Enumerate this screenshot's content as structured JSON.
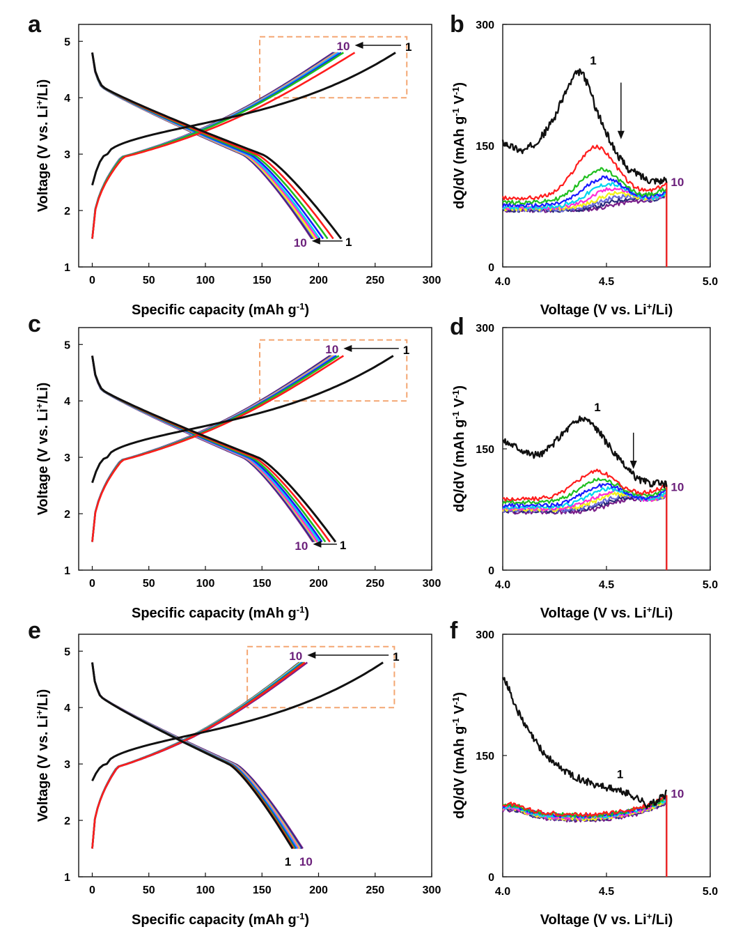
{
  "colors": {
    "cycles": [
      "#111111",
      "#ff1c1c",
      "#1fbf1f",
      "#1a1aff",
      "#00d6ee",
      "#ff2bd6",
      "#f2f21a",
      "#6b6bd9",
      "#2a2a7a",
      "#7a1f8a"
    ],
    "annotation_purple": "#6a1f7a",
    "dashed_box": "#f4a672",
    "axis": "#111111"
  },
  "chart_data": [
    {
      "panel": "a",
      "type": "line",
      "label": "a",
      "xlabel": "Specific capacity (mAh g-1)",
      "ylabel": "Voltage (V vs. Li+/Li)",
      "xlim": [
        -12,
        300
      ],
      "ylim": [
        1,
        5.3
      ],
      "xticks": [
        "0",
        "50",
        "100",
        "150",
        "200",
        "250",
        "300"
      ],
      "yticks": [
        "1",
        "2",
        "3",
        "4",
        "5"
      ],
      "charge_end_capacity": [
        268,
        232,
        222,
        220,
        218,
        217,
        216,
        215,
        214,
        213
      ],
      "discharge_end_capacity": [
        220,
        213,
        208,
        204,
        201,
        199,
        197,
        196,
        195,
        194
      ],
      "charge_start_V": [
        2.45,
        1.5,
        1.5,
        1.5,
        1.5,
        1.5,
        1.5,
        1.5,
        1.5,
        1.5
      ],
      "box": {
        "x": [
          148,
          278
        ],
        "y": [
          4.0,
          5.08
        ]
      },
      "labels": {
        "charge_first": "1",
        "charge_last": "10",
        "discharge_first": "1",
        "discharge_last": "10"
      }
    },
    {
      "panel": "c",
      "type": "line",
      "label": "c",
      "xlabel": "Specific capacity (mAh g-1)",
      "ylabel": "Voltage (V vs. Li+/Li)",
      "xlim": [
        -12,
        300
      ],
      "ylim": [
        1,
        5.3
      ],
      "xticks": [
        "0",
        "50",
        "100",
        "150",
        "200",
        "250",
        "300"
      ],
      "yticks": [
        "1",
        "2",
        "3",
        "4",
        "5"
      ],
      "charge_end_capacity": [
        266,
        222,
        218,
        216,
        215,
        214,
        213,
        212,
        211,
        210
      ],
      "discharge_end_capacity": [
        215,
        210,
        206,
        203,
        201,
        199,
        198,
        197,
        196,
        195
      ],
      "charge_start_V": [
        2.55,
        1.5,
        1.5,
        1.5,
        1.5,
        1.5,
        1.5,
        1.5,
        1.5,
        1.5
      ],
      "box": {
        "x": [
          148,
          278
        ],
        "y": [
          4.0,
          5.08
        ]
      },
      "labels": {
        "charge_first": "1",
        "charge_last": "10",
        "discharge_first": "1",
        "discharge_last": "10"
      }
    },
    {
      "panel": "e",
      "type": "line",
      "label": "e",
      "xlabel": "Specific capacity (mAh g-1)",
      "ylabel": "Voltage (V vs. Li+/Li)",
      "xlim": [
        -12,
        300
      ],
      "ylim": [
        1,
        5.3
      ],
      "xticks": [
        "0",
        "50",
        "100",
        "150",
        "200",
        "250",
        "300"
      ],
      "yticks": [
        "1",
        "2",
        "3",
        "4",
        "5"
      ],
      "charge_end_capacity": [
        257,
        188,
        187,
        186,
        185,
        185,
        184,
        184,
        183,
        190
      ],
      "discharge_end_capacity": [
        177,
        178,
        179,
        180,
        181,
        182,
        183,
        184,
        185,
        186
      ],
      "charge_start_V": [
        2.7,
        1.5,
        1.5,
        1.5,
        1.5,
        1.5,
        1.5,
        1.5,
        1.5,
        1.5
      ],
      "box": {
        "x": [
          137,
          267
        ],
        "y": [
          4.0,
          5.08
        ]
      },
      "labels": {
        "charge_first": "1",
        "charge_last": "10",
        "discharge_first": "1",
        "discharge_last": "10"
      }
    },
    {
      "panel": "b",
      "type": "line",
      "label": "b",
      "xlabel": "Voltage (V vs. Li+/Li)",
      "ylabel": "dQ/dV (mAh g-1 V-1)",
      "xlim": [
        4.0,
        5.0
      ],
      "ylim": [
        0,
        300
      ],
      "xticks": [
        "4.0",
        "4.5",
        "5.0"
      ],
      "yticks": [
        "0",
        "150",
        "300"
      ],
      "cycle1": {
        "x": [
          4.0,
          4.05,
          4.1,
          4.15,
          4.2,
          4.25,
          4.3,
          4.35,
          4.38,
          4.42,
          4.45,
          4.5,
          4.55,
          4.6,
          4.7,
          4.8
        ],
        "y": [
          155,
          148,
          143,
          152,
          165,
          185,
          215,
          238,
          242,
          220,
          195,
          165,
          140,
          122,
          108,
          106
        ]
      },
      "later_peaks": [
        148,
        120,
        110,
        102,
        96,
        90,
        86,
        82,
        78
      ],
      "later_base": [
        85,
        80,
        76,
        74,
        73,
        72,
        71,
        70,
        70
      ],
      "arrow_x": 4.57,
      "labels": {
        "first": "1",
        "last": "10"
      }
    },
    {
      "panel": "d",
      "type": "line",
      "label": "d",
      "xlabel": "Voltage (V vs. Li+/Li)",
      "ylabel": "dQ/dV (mAh g-1 V-1)",
      "xlim": [
        4.0,
        5.0
      ],
      "ylim": [
        0,
        300
      ],
      "xticks": [
        "4.0",
        "4.5",
        "5.0"
      ],
      "yticks": [
        "0",
        "150",
        "300"
      ],
      "cycle1": {
        "x": [
          4.0,
          4.05,
          4.1,
          4.15,
          4.2,
          4.25,
          4.3,
          4.35,
          4.4,
          4.45,
          4.5,
          4.55,
          4.6,
          4.65,
          4.7,
          4.8
        ],
        "y": [
          160,
          155,
          148,
          142,
          145,
          158,
          172,
          184,
          188,
          176,
          158,
          140,
          125,
          113,
          108,
          106
        ]
      },
      "later_peaks": [
        122,
        112,
        105,
        100,
        96,
        93,
        90,
        88,
        85
      ],
      "later_base": [
        88,
        84,
        80,
        78,
        76,
        75,
        74,
        73,
        72
      ],
      "arrow_x": 4.63,
      "labels": {
        "first": "1",
        "last": "10"
      }
    },
    {
      "panel": "f",
      "type": "line",
      "label": "f",
      "xlabel": "Voltage (V vs. Li+/Li)",
      "ylabel": "dQ/dV (mAh g-1 V-1)",
      "xlim": [
        4.0,
        5.0
      ],
      "ylim": [
        0,
        300
      ],
      "xticks": [
        "4.0",
        "4.5",
        "5.0"
      ],
      "yticks": [
        "0",
        "150",
        "300"
      ],
      "cycle1": {
        "x": [
          4.0,
          4.03,
          4.06,
          4.1,
          4.15,
          4.2,
          4.25,
          4.3,
          4.35,
          4.4,
          4.45,
          4.5,
          4.55,
          4.6,
          4.65,
          4.7,
          4.75,
          4.79
        ],
        "y": [
          250,
          232,
          212,
          190,
          170,
          152,
          140,
          131,
          124,
          118,
          114,
          111,
          107,
          103,
          97,
          88,
          95,
          103
        ]
      },
      "later_peaks": [
        85,
        84,
        83,
        82,
        81,
        80,
        80,
        79,
        78
      ],
      "later_base": [
        85,
        84,
        83,
        82,
        81,
        80,
        80,
        79,
        78
      ],
      "arrow_x": null,
      "labels": {
        "first": "1",
        "last": "10"
      }
    }
  ]
}
